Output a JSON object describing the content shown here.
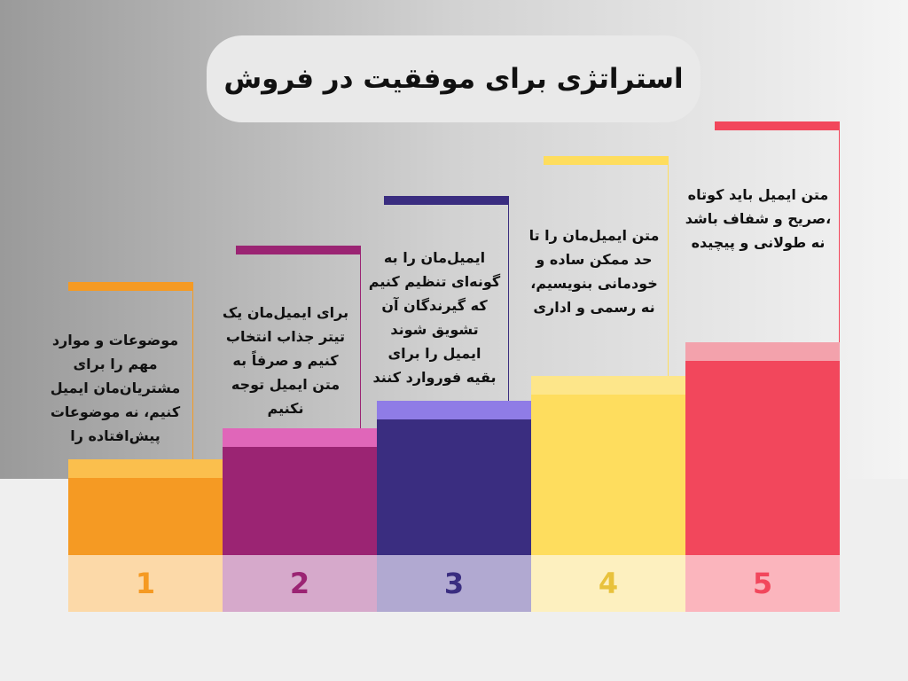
{
  "title": "استراتژی برای موفقیت در فروش",
  "steps": [
    {
      "number": "1",
      "lines": [
        "موضوعات و موارد",
        "مهم را برای",
        "مشتریان‌مان ایمیل",
        "کنیم، نه موضوعات",
        "پیش‌افتاده را"
      ]
    },
    {
      "number": "2",
      "lines": [
        "برای ایمیل‌مان یک",
        "تیتر جذاب انتخاب",
        "کنیم و صرفاً به",
        "متن ایمیل توجه",
        "نکنیم"
      ]
    },
    {
      "number": "3",
      "lines": [
        "ایمیل‌مان را به",
        "گونه‌ای تنظیم کنیم",
        "که گیرندگان آن",
        "تشویق شوند",
        "ایمیل را برای",
        "بقیه فوروارد کنند"
      ]
    },
    {
      "number": "4",
      "lines": [
        "متن ایمیل‌مان را تا",
        "حد ممکن ساده و",
        "خودمانی بنویسیم،",
        "نه رسمی و اداری"
      ]
    },
    {
      "number": "5",
      "lines": [
        "متن ایمیل باید کوتاه",
        "،صریح و شفاف باشد",
        "نه طولانی و پیچیده"
      ]
    }
  ]
}
